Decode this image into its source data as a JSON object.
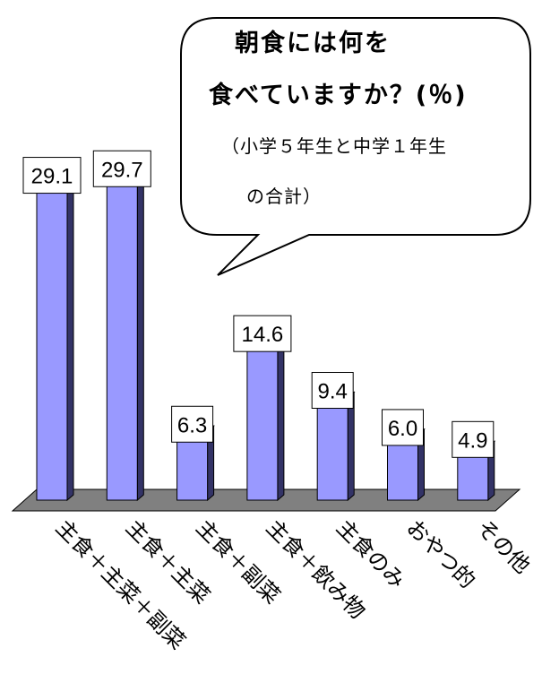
{
  "callout": {
    "title_line1": "朝食には何を",
    "title_line2": "食べていますか？(％)",
    "note_line1": "（小学５年生と中学１年生",
    "note_line2": "の合計）"
  },
  "chart_data": {
    "type": "bar",
    "title": "朝食には何を食べていますか？(％)",
    "subtitle": "（小学５年生と中学１年生の合計）",
    "categories": [
      "主食＋主菜＋副菜",
      "主食＋主菜",
      "主食＋副菜",
      "主食＋飲み物",
      "主食のみ",
      "おやつ的",
      "その他"
    ],
    "values": [
      29.1,
      29.7,
      6.3,
      14.6,
      9.4,
      6.0,
      4.9
    ],
    "value_labels": [
      "29.1",
      "29.7",
      "6.3",
      "14.6",
      "9.4",
      "6.0",
      "4.9"
    ],
    "ylim": [
      0,
      30
    ],
    "grid": false,
    "bar_color": "#9999ff",
    "bar_side_color": "#333366",
    "floor_color": "#808080"
  }
}
